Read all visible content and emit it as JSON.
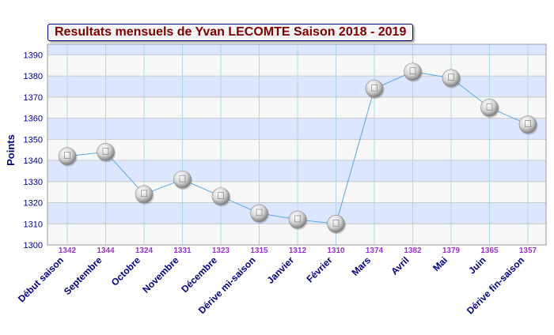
{
  "chart_data": {
    "type": "line",
    "title": "Resultats mensuels de Yvan LECOMTE Saison 2018 - 2019",
    "ylabel": "Points",
    "xlabel": "",
    "ylim": [
      1300,
      1395
    ],
    "yticks": [
      1300,
      1310,
      1320,
      1330,
      1340,
      1350,
      1360,
      1370,
      1380,
      1390
    ],
    "grid": true,
    "legend": "none",
    "categories": [
      "Début saison",
      "Septembre",
      "Octobre",
      "Novembre",
      "Décembre",
      "Dérive mi-saison",
      "Janvier",
      "Février",
      "Mars",
      "Avril",
      "Mai",
      "Juin",
      "Dérive fin-saison"
    ],
    "series": [
      {
        "values": [
          1342,
          1344,
          1324,
          1331,
          1323,
          1315,
          1312,
          1310,
          1374,
          1382,
          1379,
          1365,
          1357
        ]
      }
    ],
    "data_labels": [
      "1342",
      "1344",
      "1324",
      "1331",
      "1323",
      "1315",
      "1312",
      "1310",
      "1374",
      "1382",
      "1379",
      "1365",
      "1357"
    ],
    "colors": {
      "line": "#5aa8e0",
      "band": "#dde6ff",
      "band_alt": "#f7f7f7",
      "vgrid": "#a8d8e8",
      "title": "#800000",
      "title_border": "#000080",
      "category_label": "#000080",
      "data_label": "#9933cc"
    }
  }
}
